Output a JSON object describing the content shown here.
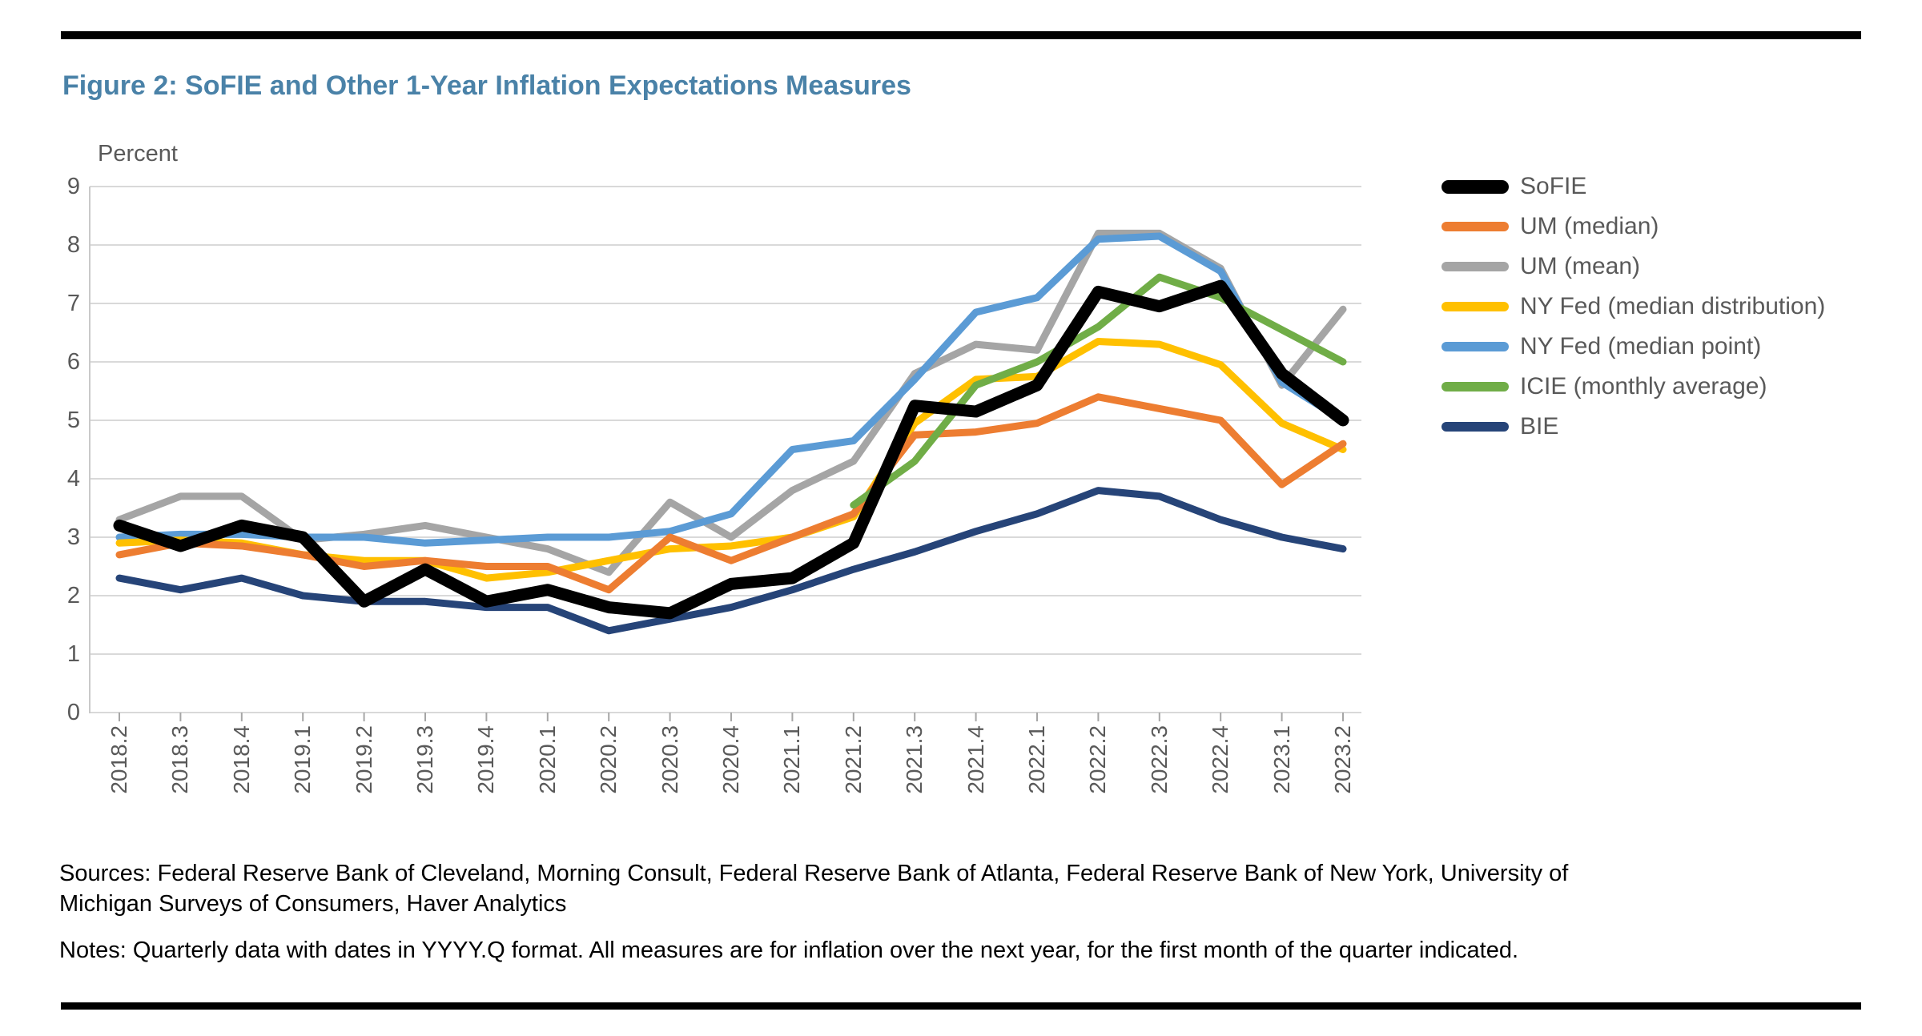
{
  "page": {
    "title": "Figure 2: SoFIE and Other 1-Year Inflation Expectations Measures",
    "sources_line1": "Sources: Federal Reserve Bank of Cleveland, Morning Consult, Federal Reserve Bank of Atlanta, Federal Reserve Bank of New York, University of",
    "sources_line2": "Michigan Surveys of Consumers, Haver Analytics",
    "notes": "Notes: Quarterly data with dates in YYYY.Q format. All measures are for inflation over the next year, for the first month of the quarter indicated."
  },
  "chart_data": {
    "type": "line",
    "ylabel": "Percent",
    "ylim": [
      0,
      9
    ],
    "yticks": [
      "9",
      "8",
      "7",
      "6",
      "5",
      "4",
      "3",
      "2",
      "1",
      "0"
    ],
    "grid": true,
    "legend_position": "right",
    "categories": [
      "2018.2",
      "2018.3",
      "2018.4",
      "2019.1",
      "2019.2",
      "2019.3",
      "2019.4",
      "2020.1",
      "2020.2",
      "2020.3",
      "2020.4",
      "2021.1",
      "2021.2",
      "2021.3",
      "2021.4",
      "2022.1",
      "2022.2",
      "2022.3",
      "2022.4",
      "2023.1",
      "2023.2"
    ],
    "series": [
      {
        "name": "SoFIE",
        "color": "#000000",
        "stroke_width": 15,
        "values": [
          3.2,
          2.85,
          3.2,
          3.0,
          1.9,
          2.45,
          1.9,
          2.1,
          1.8,
          1.7,
          2.2,
          2.3,
          2.9,
          5.25,
          5.15,
          5.6,
          7.2,
          6.95,
          7.3,
          5.8,
          5.0
        ]
      },
      {
        "name": "UM (median)",
        "color": "#ED7D31",
        "stroke_width": 9,
        "values": [
          2.7,
          2.9,
          2.85,
          2.7,
          2.5,
          2.6,
          2.5,
          2.5,
          2.1,
          3.0,
          2.6,
          3.0,
          3.4,
          4.75,
          4.8,
          4.95,
          5.4,
          5.2,
          5.0,
          3.9,
          4.6
        ]
      },
      {
        "name": "UM (mean)",
        "color": "#A5A5A5",
        "stroke_width": 9,
        "values": [
          3.3,
          3.7,
          3.7,
          2.95,
          3.05,
          3.2,
          3.0,
          2.8,
          2.4,
          3.6,
          3.0,
          3.8,
          4.3,
          5.8,
          6.3,
          6.2,
          8.2,
          8.2,
          7.6,
          5.6,
          6.9
        ]
      },
      {
        "name": "NY Fed (median distribution)",
        "color": "#FFC000",
        "stroke_width": 9,
        "values": [
          2.9,
          2.95,
          2.9,
          2.7,
          2.6,
          2.6,
          2.3,
          2.4,
          2.6,
          2.8,
          2.85,
          3.0,
          3.35,
          4.95,
          5.7,
          5.75,
          6.35,
          6.3,
          5.95,
          4.95,
          4.5
        ]
      },
      {
        "name": "NY Fed (median point)",
        "color": "#5B9BD5",
        "stroke_width": 9,
        "values": [
          3.0,
          3.05,
          3.05,
          3.0,
          3.0,
          2.9,
          2.95,
          3.0,
          3.0,
          3.1,
          3.4,
          4.5,
          4.65,
          5.7,
          6.85,
          7.1,
          8.1,
          8.15,
          7.55,
          5.65,
          5.0
        ]
      },
      {
        "name": "ICIE (monthly average)",
        "color": "#70AD47",
        "stroke_width": 9,
        "values": [
          null,
          null,
          null,
          null,
          null,
          null,
          null,
          null,
          null,
          null,
          null,
          null,
          3.55,
          4.3,
          5.6,
          6.0,
          6.6,
          7.45,
          7.1,
          6.55,
          6.0
        ]
      },
      {
        "name": "BIE",
        "color": "#264478",
        "stroke_width": 9,
        "values": [
          2.3,
          2.1,
          2.3,
          2.0,
          1.9,
          1.9,
          1.8,
          1.8,
          1.4,
          1.6,
          1.8,
          2.1,
          2.45,
          2.75,
          3.1,
          3.4,
          3.8,
          3.7,
          3.3,
          3.0,
          2.8
        ]
      }
    ]
  }
}
